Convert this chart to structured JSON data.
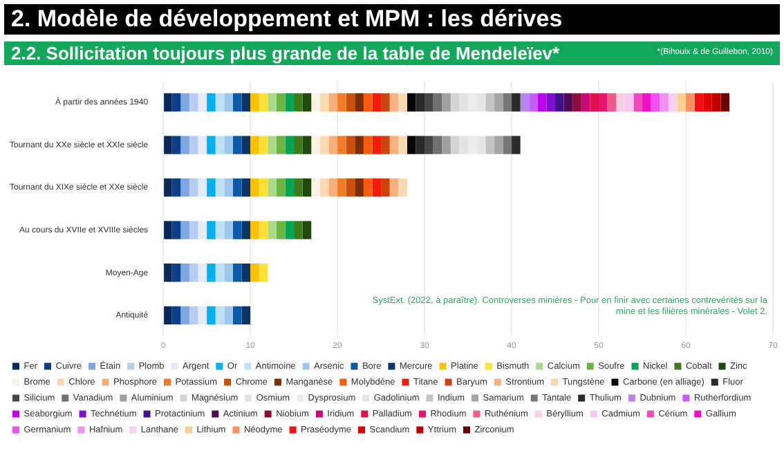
{
  "chart_data": {
    "type": "bar",
    "orientation": "horizontal",
    "stacked": true,
    "title": "2. Modèle de développement et MPM : les dérives",
    "subtitle": "2.2. Sollicitation toujours plus grande de la table de Mendeleïev*",
    "annotations": [
      "*(Bihouix & de Guillebon, 2010)",
      "SystExt. (2022, à paraître). Controverses minières - Pour en finir avec certaines contrevérités sur la mine et les filières minérales - Volet 2."
    ],
    "categories": [
      "À partir des années 1940",
      "Tournant du XXe siècle et XXIe siècle",
      "Tournant du XIXe siècle et XXe siècle",
      "Au cours du XVIIe et XVIIIe siècles",
      "Moyen-Age",
      "Antiquité"
    ],
    "xlim": [
      0,
      70
    ],
    "xticks": [
      0,
      10,
      20,
      30,
      40,
      50,
      60,
      70
    ],
    "grid": "x",
    "legend": "bottom",
    "series": [
      {
        "name": "Fer",
        "color": "#0a2a5c",
        "values": [
          1,
          1,
          1,
          1,
          1,
          1
        ]
      },
      {
        "name": "Cuivre",
        "color": "#0d3f86",
        "values": [
          1,
          1,
          1,
          1,
          1,
          1
        ]
      },
      {
        "name": "Étain",
        "color": "#7ea6e0",
        "values": [
          1,
          1,
          1,
          1,
          1,
          1
        ]
      },
      {
        "name": "Plomb",
        "color": "#b4cdf0",
        "values": [
          1,
          1,
          1,
          1,
          1,
          1
        ]
      },
      {
        "name": "Argent",
        "color": "#e3ebf6",
        "values": [
          1,
          1,
          1,
          1,
          1,
          1
        ]
      },
      {
        "name": "Or",
        "color": "#00b0f0",
        "values": [
          1,
          1,
          1,
          1,
          1,
          1
        ]
      },
      {
        "name": "Antimoine",
        "color": "#bfe0f5",
        "values": [
          1,
          1,
          1,
          1,
          1,
          1
        ]
      },
      {
        "name": "Arsenic",
        "color": "#9cc8ef",
        "values": [
          1,
          1,
          1,
          1,
          1,
          1
        ]
      },
      {
        "name": "Bore",
        "color": "#0b5ba8",
        "values": [
          1,
          1,
          1,
          1,
          1,
          1
        ]
      },
      {
        "name": "Mercure",
        "color": "#0b3566",
        "values": [
          1,
          1,
          1,
          1,
          1,
          1
        ]
      },
      {
        "name": "Platine",
        "color": "#ffc000",
        "values": [
          1,
          1,
          1,
          1,
          1,
          null
        ]
      },
      {
        "name": "Bismuth",
        "color": "#ffe135",
        "values": [
          1,
          1,
          1,
          1,
          1,
          null
        ]
      },
      {
        "name": "Calcium",
        "color": "#a9d98a",
        "values": [
          1,
          1,
          1,
          1,
          null,
          null
        ]
      },
      {
        "name": "Soufre",
        "color": "#6db33f",
        "values": [
          1,
          1,
          1,
          1,
          null,
          null
        ]
      },
      {
        "name": "Nickel",
        "color": "#00a651",
        "values": [
          1,
          1,
          1,
          1,
          null,
          null
        ]
      },
      {
        "name": "Cobalt",
        "color": "#3f7a1f",
        "values": [
          1,
          1,
          1,
          1,
          null,
          null
        ]
      },
      {
        "name": "Zinc",
        "color": "#1f4a0e",
        "values": [
          1,
          1,
          1,
          1,
          null,
          null
        ]
      },
      {
        "name": "Brome",
        "color": "#fbf3e2",
        "values": [
          1,
          1,
          1,
          null,
          null,
          null
        ]
      },
      {
        "name": "Chlore",
        "color": "#fcd9b0",
        "values": [
          1,
          1,
          1,
          null,
          null,
          null
        ]
      },
      {
        "name": "Phosphore",
        "color": "#f8b07a",
        "values": [
          1,
          1,
          1,
          null,
          null,
          null
        ]
      },
      {
        "name": "Potassium",
        "color": "#f07c2a",
        "values": [
          1,
          1,
          1,
          null,
          null,
          null
        ]
      },
      {
        "name": "Chrome",
        "color": "#c8500a",
        "values": [
          1,
          1,
          1,
          null,
          null,
          null
        ]
      },
      {
        "name": "Manganèse",
        "color": "#7a2e06",
        "values": [
          1,
          1,
          1,
          null,
          null,
          null
        ]
      },
      {
        "name": "Molybdène",
        "color": "#fb5a0a",
        "values": [
          1,
          1,
          1,
          null,
          null,
          null
        ]
      },
      {
        "name": "Titane",
        "color": "#f51a0a",
        "values": [
          1,
          1,
          1,
          null,
          null,
          null
        ]
      },
      {
        "name": "Baryum",
        "color": "#c8460e",
        "values": [
          1,
          1,
          1,
          null,
          null,
          null
        ]
      },
      {
        "name": "Strontium",
        "color": "#f8b07e",
        "values": [
          1,
          1,
          1,
          null,
          null,
          null
        ]
      },
      {
        "name": "Tungstène",
        "color": "#fcd8b0",
        "values": [
          1,
          1,
          1,
          null,
          null,
          null
        ]
      },
      {
        "name": "Carbone (en alliage)",
        "color": "#050505",
        "values": [
          1,
          1,
          null,
          null,
          null,
          null
        ]
      },
      {
        "name": "Fluor",
        "color": "#2a2a2a",
        "values": [
          1,
          1,
          null,
          null,
          null,
          null
        ]
      },
      {
        "name": "Silicium",
        "color": "#454545",
        "values": [
          1,
          1,
          null,
          null,
          null,
          null
        ]
      },
      {
        "name": "Vanadium",
        "color": "#707070",
        "values": [
          1,
          1,
          null,
          null,
          null,
          null
        ]
      },
      {
        "name": "Aluminium",
        "color": "#a0a0a0",
        "values": [
          1,
          1,
          null,
          null,
          null,
          null
        ]
      },
      {
        "name": "Magnésium",
        "color": "#d4d4d4",
        "values": [
          1,
          1,
          null,
          null,
          null,
          null
        ]
      },
      {
        "name": "Osmium",
        "color": "#e4e4e4",
        "values": [
          1,
          1,
          null,
          null,
          null,
          null
        ]
      },
      {
        "name": "Dysprosium",
        "color": "#ececec",
        "values": [
          1,
          1,
          null,
          null,
          null,
          null
        ]
      },
      {
        "name": "Gadolinium",
        "color": "#e6e6e6",
        "values": [
          1,
          1,
          null,
          null,
          null,
          null
        ]
      },
      {
        "name": "Indium",
        "color": "#c4c4c4",
        "values": [
          1,
          1,
          null,
          null,
          null,
          null
        ]
      },
      {
        "name": "Samarium",
        "color": "#a6a6a6",
        "values": [
          1,
          1,
          null,
          null,
          null,
          null
        ]
      },
      {
        "name": "Tantale",
        "color": "#777777",
        "values": [
          1,
          1,
          null,
          null,
          null,
          null
        ]
      },
      {
        "name": "Thulium",
        "color": "#2b2b2b",
        "values": [
          1,
          1,
          null,
          null,
          null,
          null
        ]
      },
      {
        "name": "Dubnium",
        "color": "#b983f0",
        "values": [
          1,
          null,
          null,
          null,
          null,
          null
        ]
      },
      {
        "name": "Rutherfordium",
        "color": "#c45ef5",
        "values": [
          1,
          null,
          null,
          null,
          null,
          null
        ]
      },
      {
        "name": "Seaborgium",
        "color": "#c000f0",
        "values": [
          1,
          null,
          null,
          null,
          null,
          null
        ]
      },
      {
        "name": "Technétium",
        "color": "#8010d0",
        "values": [
          1,
          null,
          null,
          null,
          null,
          null
        ]
      },
      {
        "name": "Protactinium",
        "color": "#3e1488",
        "values": [
          1,
          null,
          null,
          null,
          null,
          null
        ]
      },
      {
        "name": "Actinium",
        "color": "#500a50",
        "values": [
          1,
          null,
          null,
          null,
          null,
          null
        ]
      },
      {
        "name": "Niobium",
        "color": "#900c3f",
        "values": [
          1,
          null,
          null,
          null,
          null,
          null
        ]
      },
      {
        "name": "Iridium",
        "color": "#c80a78",
        "values": [
          1,
          null,
          null,
          null,
          null,
          null
        ]
      },
      {
        "name": "Palladium",
        "color": "#e0104a",
        "values": [
          1,
          null,
          null,
          null,
          null,
          null
        ]
      },
      {
        "name": "Rhodium",
        "color": "#e8146e",
        "values": [
          1,
          null,
          null,
          null,
          null,
          null
        ]
      },
      {
        "name": "Ruthénium",
        "color": "#f05a8c",
        "values": [
          1,
          null,
          null,
          null,
          null,
          null
        ]
      },
      {
        "name": "Béryllium",
        "color": "#f8d0e4",
        "values": [
          1,
          null,
          null,
          null,
          null,
          null
        ]
      },
      {
        "name": "Cadmium",
        "color": "#f8c8f0",
        "values": [
          1,
          null,
          null,
          null,
          null,
          null
        ]
      },
      {
        "name": "Cérium",
        "color": "#f048c0",
        "values": [
          1,
          null,
          null,
          null,
          null,
          null
        ]
      },
      {
        "name": "Gallium",
        "color": "#f010c8",
        "values": [
          1,
          null,
          null,
          null,
          null,
          null
        ]
      },
      {
        "name": "Germanium",
        "color": "#f050f0",
        "values": [
          1,
          null,
          null,
          null,
          null,
          null
        ]
      },
      {
        "name": "Hafnium",
        "color": "#f090f0",
        "values": [
          1,
          null,
          null,
          null,
          null,
          null
        ]
      },
      {
        "name": "Lanthane",
        "color": "#f8d0f0",
        "values": [
          1,
          null,
          null,
          null,
          null,
          null
        ]
      },
      {
        "name": "Lithium",
        "color": "#fcd08c",
        "values": [
          1,
          null,
          null,
          null,
          null,
          null
        ]
      },
      {
        "name": "Néodyme",
        "color": "#f89060",
        "values": [
          1,
          null,
          null,
          null,
          null,
          null
        ]
      },
      {
        "name": "Praséodyme",
        "color": "#f01010",
        "values": [
          1,
          null,
          null,
          null,
          null,
          null
        ]
      },
      {
        "name": "Scandium",
        "color": "#e00000",
        "values": [
          1,
          null,
          null,
          null,
          null,
          null
        ]
      },
      {
        "name": "Yttrium",
        "color": "#c00000",
        "values": [
          1,
          null,
          null,
          null,
          null,
          null
        ]
      },
      {
        "name": "Zirconium",
        "color": "#6a0000",
        "values": [
          1,
          null,
          null,
          null,
          null,
          null
        ]
      }
    ]
  }
}
